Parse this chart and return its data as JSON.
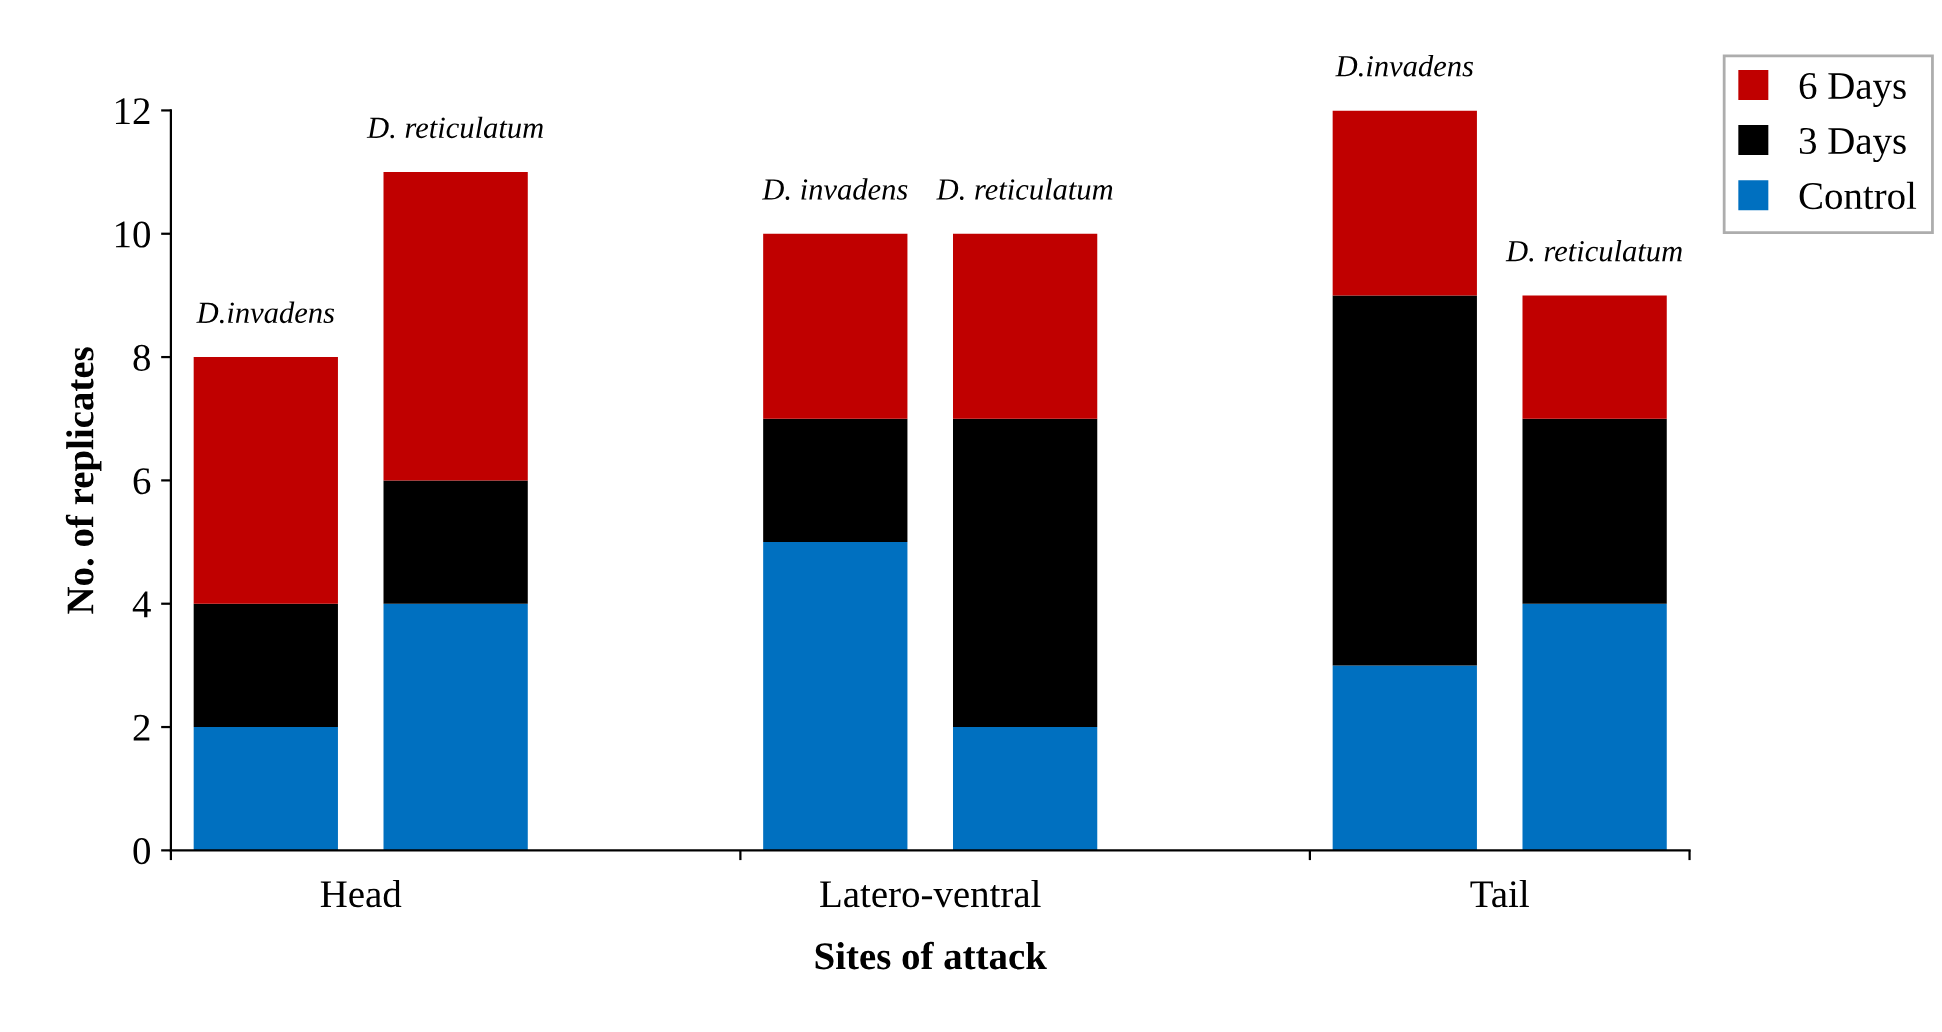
{
  "chart_data": {
    "type": "bar",
    "stacked": true,
    "xlabel": "Sites of attack",
    "ylabel": "No. of replicates",
    "categories": [
      null,
      null,
      null,
      null,
      null,
      null,
      null,
      null
    ],
    "series": [
      {
        "name": "Control",
        "color": "#0070c0",
        "values": [
          2,
          4,
          null,
          5,
          2,
          null,
          3,
          4
        ]
      },
      {
        "name": "3 Days",
        "color": "#000000",
        "values": [
          2,
          2,
          null,
          2,
          5,
          null,
          6,
          3
        ]
      },
      {
        "name": "6 Days",
        "color": "#c00000",
        "values": [
          4,
          5,
          null,
          3,
          3,
          null,
          3,
          2
        ]
      }
    ],
    "ylim": [
      0,
      12
    ],
    "yticks": [
      0,
      2,
      4,
      6,
      8,
      10,
      12
    ],
    "grid": false,
    "legend": "top right",
    "annotations": [
      {
        "text": "D.invadens",
        "y": 8
      },
      {
        "text": "D. reticulatum",
        "y": 11
      },
      {
        "text": "D. invadens",
        "y": 10
      },
      {
        "text": "D. reticulatum",
        "y": 10
      },
      {
        "text": "D.invadens",
        "y": 12
      },
      {
        "text": "D. reticulatum",
        "y": 9
      },
      "Head",
      "Latero-ventral",
      "Tail"
    ]
  }
}
